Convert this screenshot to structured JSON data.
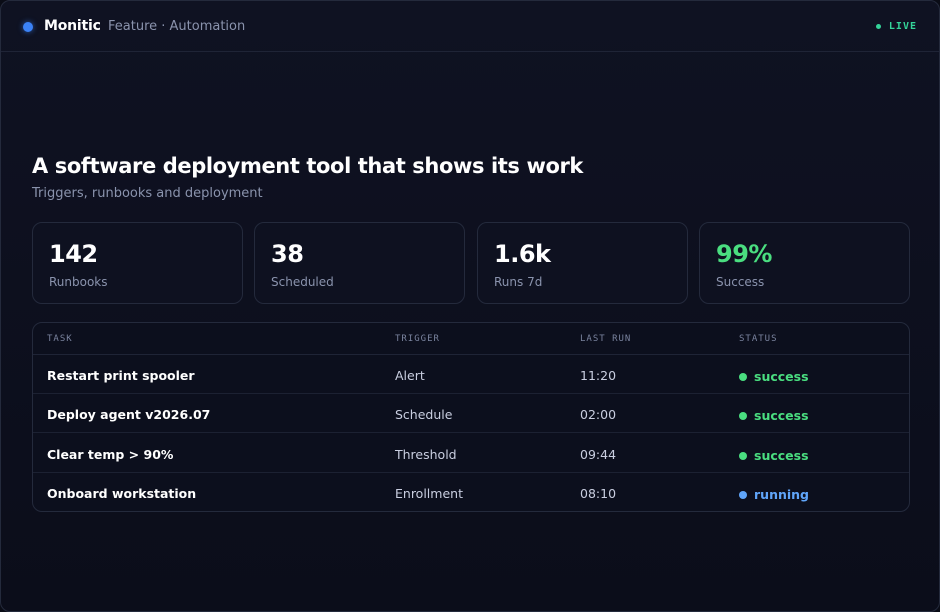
{
  "header": {
    "brand": "Monitic",
    "breadcrumb": "Feature · Automation",
    "live_label": "LIVE",
    "brand_color": "#3b82f6",
    "live_color": "#34d399"
  },
  "hero": {
    "title": "A software deployment tool that shows its work",
    "subtitle": "Triggers, runbooks and deployment"
  },
  "stats": [
    {
      "value": "142",
      "label": "Runbooks"
    },
    {
      "value": "38",
      "label": "Scheduled"
    },
    {
      "value": "1.6k",
      "label": "Runs 7d"
    },
    {
      "value": "99%",
      "label": "Success",
      "color": "#4ade80"
    }
  ],
  "table": {
    "columns": [
      "TASK",
      "TRIGGER",
      "LAST RUN",
      "STATUS"
    ],
    "rows": [
      {
        "task": "Restart print spooler",
        "trigger": "Alert",
        "last_run": "11:20",
        "status": "success",
        "status_color": "#4ade80"
      },
      {
        "task": "Deploy agent v2026.07",
        "trigger": "Schedule",
        "last_run": "02:00",
        "status": "success",
        "status_color": "#4ade80"
      },
      {
        "task": "Clear temp > 90%",
        "trigger": "Threshold",
        "last_run": "09:44",
        "status": "success",
        "status_color": "#4ade80"
      },
      {
        "task": "Onboard workstation",
        "trigger": "Enrollment",
        "last_run": "08:10",
        "status": "running",
        "status_color": "#60a5fa"
      }
    ]
  }
}
